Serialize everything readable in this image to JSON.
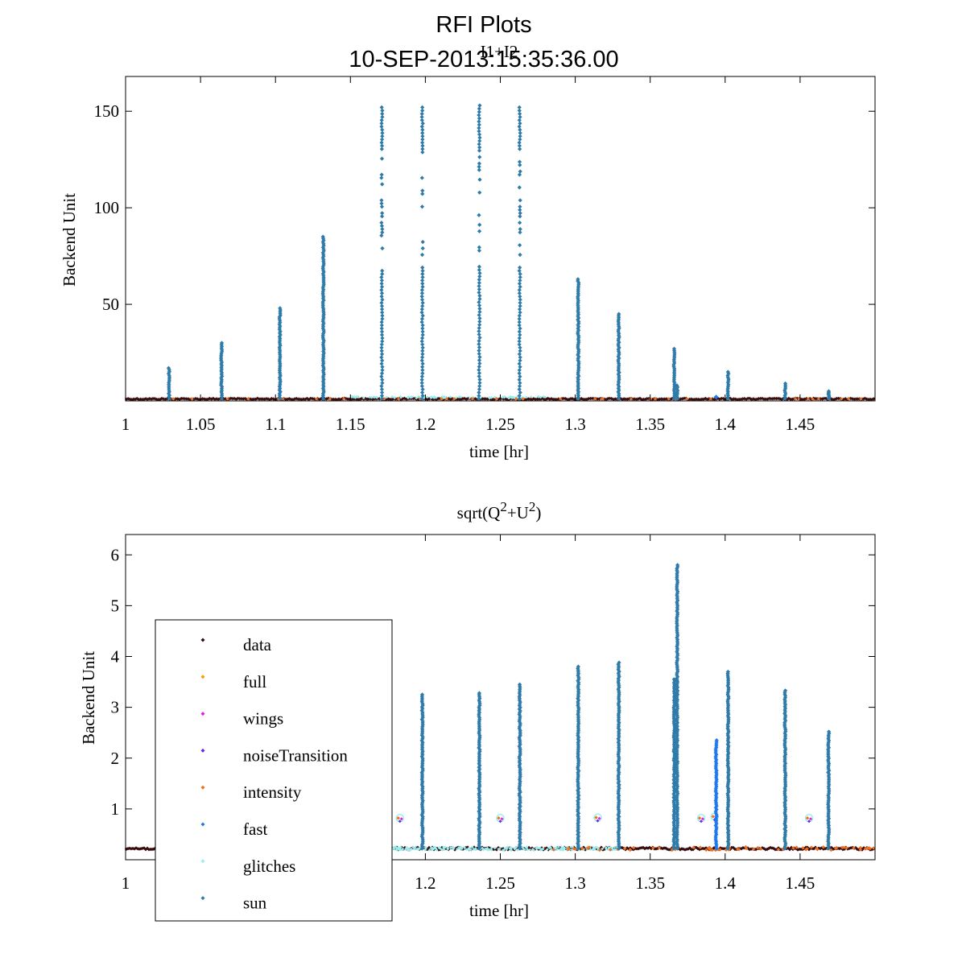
{
  "figure": {
    "title": "RFI Plots",
    "subtitle": "10-SEP-2013:15:35:36.00"
  },
  "colors": {
    "data": "#3a0d0d",
    "full": "#f5a000",
    "wings": "#e020e0",
    "noiseTransition": "#6a2adc",
    "intensity": "#ee7020",
    "fast": "#1e78ee",
    "glitches": "#9aeef0",
    "sun": "#2e7aa8"
  },
  "legend": {
    "position": "lower-left of bottom panel",
    "entries": [
      {
        "key": "data",
        "label": "data"
      },
      {
        "key": "full",
        "label": "full"
      },
      {
        "key": "wings",
        "label": "wings"
      },
      {
        "key": "noiseTransition",
        "label": "noiseTransition"
      },
      {
        "key": "intensity",
        "label": "intensity"
      },
      {
        "key": "fast",
        "label": "fast"
      },
      {
        "key": "glitches",
        "label": "glitches"
      },
      {
        "key": "sun",
        "label": "sun"
      }
    ]
  },
  "chart_data": [
    {
      "type": "scatter",
      "title": "I1+I2",
      "xlabel": "time [hr]",
      "ylabel": "Backend Unit",
      "xlim": [
        1.0,
        1.5
      ],
      "ylim": [
        0,
        168
      ],
      "xticks": [
        1,
        1.05,
        1.1,
        1.15,
        1.2,
        1.25,
        1.3,
        1.35,
        1.4,
        1.45
      ],
      "xtick_labels": [
        "1",
        "1.05",
        "1.1",
        "1.15",
        "1.2",
        "1.25",
        "1.3",
        "1.35",
        "1.4",
        "1.45"
      ],
      "yticks": [
        50,
        100,
        150
      ],
      "ytick_labels": [
        "50",
        "100",
        "150"
      ],
      "baseline": 1,
      "sun_spikes": [
        {
          "x": 1.029,
          "peak": 17
        },
        {
          "x": 1.064,
          "peak": 30
        },
        {
          "x": 1.103,
          "peak": 48
        },
        {
          "x": 1.132,
          "peak": 85
        },
        {
          "x": 1.171,
          "peak": 152
        },
        {
          "x": 1.198,
          "peak": 152
        },
        {
          "x": 1.236,
          "peak": 153
        },
        {
          "x": 1.263,
          "peak": 152
        },
        {
          "x": 1.302,
          "peak": 63
        },
        {
          "x": 1.329,
          "peak": 45
        },
        {
          "x": 1.366,
          "peak": 27
        },
        {
          "x": 1.368,
          "peak": 8
        },
        {
          "x": 1.402,
          "peak": 15
        },
        {
          "x": 1.44,
          "peak": 9
        },
        {
          "x": 1.469,
          "peak": 5
        }
      ],
      "fast_points": [
        {
          "x": 1.394,
          "y": 2
        }
      ]
    },
    {
      "type": "scatter",
      "title_parts": [
        "sqrt(Q",
        "2",
        "+U",
        "2",
        ")"
      ],
      "xlabel": "time [hr]",
      "ylabel": "Backend Unit",
      "xlim": [
        1.0,
        1.5
      ],
      "ylim": [
        0,
        6.4
      ],
      "xticks": [
        1,
        1.2,
        1.25,
        1.3,
        1.35,
        1.4,
        1.45
      ],
      "xtick_labels": [
        "1",
        "1.2",
        "1.25",
        "1.3",
        "1.35",
        "1.4",
        "1.45"
      ],
      "yticks": [
        1,
        2,
        3,
        4,
        5,
        6
      ],
      "ytick_labels": [
        "1",
        "2",
        "3",
        "4",
        "5",
        "6"
      ],
      "baseline": 0.22,
      "sun_spikes": [
        {
          "x": 1.198,
          "peak": 3.25
        },
        {
          "x": 1.236,
          "peak": 3.28
        },
        {
          "x": 1.263,
          "peak": 3.45
        },
        {
          "x": 1.302,
          "peak": 3.8
        },
        {
          "x": 1.329,
          "peak": 3.88
        },
        {
          "x": 1.366,
          "peak": 3.55
        },
        {
          "x": 1.368,
          "peak": 5.8
        },
        {
          "x": 1.402,
          "peak": 3.7
        },
        {
          "x": 1.44,
          "peak": 3.33
        },
        {
          "x": 1.469,
          "peak": 2.52
        }
      ],
      "fast_spike": {
        "x": 1.394,
        "peak": 2.35
      },
      "glitch_clusters": [
        {
          "x": 1.183,
          "y": 0.82
        },
        {
          "x": 1.25,
          "y": 0.82
        },
        {
          "x": 1.315,
          "y": 0.83
        },
        {
          "x": 1.384,
          "y": 0.82
        },
        {
          "x": 1.393,
          "y": 0.85
        },
        {
          "x": 1.456,
          "y": 0.82
        }
      ]
    }
  ]
}
